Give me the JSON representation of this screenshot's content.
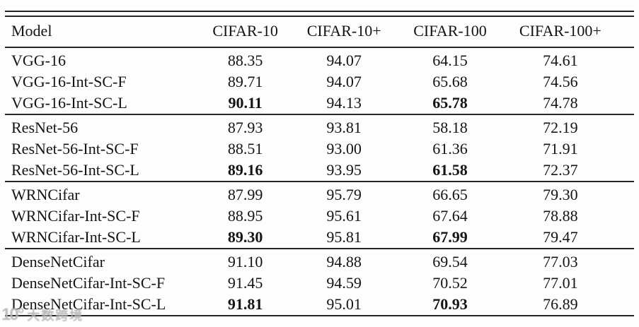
{
  "colors": {
    "rule": "#262626",
    "text": "#141414",
    "watermark": "#b6b6b6",
    "background": "#fdfdfd"
  },
  "table": {
    "columns": {
      "model": "Model",
      "c1": "CIFAR-10",
      "c2": "CIFAR-10+",
      "c3": "CIFAR-100",
      "c4": "CIFAR-100+"
    },
    "groups": [
      {
        "rows": [
          {
            "model": "VGG-16",
            "values": [
              "88.35",
              "94.07",
              "64.15",
              "74.61"
            ],
            "bold": [
              false,
              false,
              false,
              false
            ]
          },
          {
            "model": "VGG-16-Int-SC-F",
            "values": [
              "89.71",
              "94.07",
              "65.68",
              "74.56"
            ],
            "bold": [
              false,
              false,
              false,
              false
            ]
          },
          {
            "model": "VGG-16-Int-SC-L",
            "values": [
              "90.11",
              "94.13",
              "65.78",
              "74.78"
            ],
            "bold": [
              true,
              false,
              true,
              false
            ]
          }
        ]
      },
      {
        "rows": [
          {
            "model": "ResNet-56",
            "values": [
              "87.93",
              "93.81",
              "58.18",
              "72.19"
            ],
            "bold": [
              false,
              false,
              false,
              false
            ]
          },
          {
            "model": "ResNet-56-Int-SC-F",
            "values": [
              "88.51",
              "93.00",
              "61.36",
              "71.91"
            ],
            "bold": [
              false,
              false,
              false,
              false
            ]
          },
          {
            "model": "ResNet-56-Int-SC-L",
            "values": [
              "89.16",
              "93.95",
              "61.58",
              "72.37"
            ],
            "bold": [
              true,
              false,
              true,
              false
            ]
          }
        ]
      },
      {
        "rows": [
          {
            "model": "WRNCifar",
            "values": [
              "87.99",
              "95.79",
              "66.65",
              "79.30"
            ],
            "bold": [
              false,
              false,
              false,
              false
            ]
          },
          {
            "model": "WRNCifar-Int-SC-F",
            "values": [
              "88.95",
              "95.61",
              "67.64",
              "78.88"
            ],
            "bold": [
              false,
              false,
              false,
              false
            ]
          },
          {
            "model": "WRNCifar-Int-SC-L",
            "values": [
              "89.30",
              "95.81",
              "67.99",
              "79.47"
            ],
            "bold": [
              true,
              false,
              true,
              false
            ]
          }
        ]
      },
      {
        "rows": [
          {
            "model": "DenseNetCifar",
            "values": [
              "91.10",
              "94.88",
              "69.54",
              "77.03"
            ],
            "bold": [
              false,
              false,
              false,
              false
            ]
          },
          {
            "model": "DenseNetCifar-Int-SC-F",
            "values": [
              "91.45",
              "94.59",
              "70.52",
              "77.01"
            ],
            "bold": [
              false,
              false,
              false,
              false
            ]
          },
          {
            "model": "DenseNetCifar-Int-SC-L",
            "values": [
              "91.81",
              "95.01",
              "70.93",
              "76.89"
            ],
            "bold": [
              true,
              false,
              true,
              false
            ]
          }
        ]
      }
    ]
  },
  "watermark": {
    "logo": "10°",
    "text": "大数跨境"
  }
}
